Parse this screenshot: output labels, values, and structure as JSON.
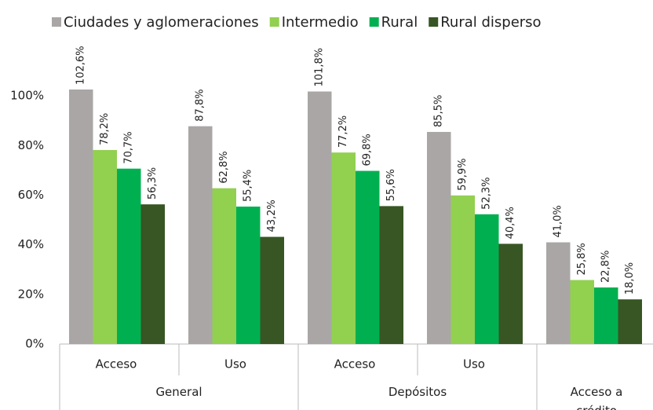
{
  "chart_data": {
    "type": "bar",
    "categories": [
      [
        "General",
        "Acceso"
      ],
      [
        "General",
        "Uso"
      ],
      [
        "Depósitos",
        "Acceso"
      ],
      [
        "Depósitos",
        "Uso"
      ],
      [
        "Acceso a crédito",
        null
      ]
    ],
    "series": [
      {
        "name": "Ciudades y aglomeraciones",
        "color": "#aaa6a6",
        "values": [
          102.6,
          87.8,
          101.8,
          85.5,
          41.0
        ],
        "value_labels": [
          "102,6%",
          "87,8%",
          "101,8%",
          "85,5%",
          "41,0%"
        ]
      },
      {
        "name": "Intermedio",
        "color": "#92d050",
        "values": [
          78.2,
          62.8,
          77.2,
          59.9,
          25.8
        ],
        "value_labels": [
          "78,2%",
          "62,8%",
          "77,2%",
          "59,9%",
          "25,8%"
        ]
      },
      {
        "name": "Rural",
        "color": "#00b050",
        "values": [
          70.7,
          55.4,
          69.8,
          52.3,
          22.8
        ],
        "value_labels": [
          "70,7%",
          "55,4%",
          "69,8%",
          "52,3%",
          "22,8%"
        ]
      },
      {
        "name": "Rural disperso",
        "color": "#375623",
        "values": [
          56.3,
          43.2,
          55.6,
          40.4,
          18.0
        ],
        "value_labels": [
          "56,3%",
          "43,2%",
          "55,6%",
          "40,4%",
          "18,0%"
        ]
      }
    ],
    "ylim": [
      0,
      120
    ],
    "yticks": [
      {
        "value": 0,
        "label": "0%"
      },
      {
        "value": 20,
        "label": "20%"
      },
      {
        "value": 40,
        "label": "40%"
      },
      {
        "value": 60,
        "label": "60%"
      },
      {
        "value": 80,
        "label": "80%"
      },
      {
        "value": 100,
        "label": "100%"
      }
    ],
    "legend": "top"
  }
}
